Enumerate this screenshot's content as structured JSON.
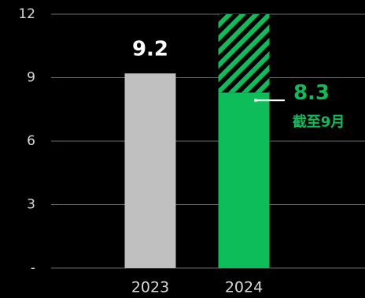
{
  "chart_data": {
    "type": "bar",
    "categories": [
      "2023",
      "2024"
    ],
    "series": [
      {
        "colors": [
          "#c0c0c0",
          "#0dbd5a"
        ],
        "values": [
          9.2,
          8.3
        ]
      },
      {
        "color": "#0dbd5a",
        "pattern": "hatch",
        "values": [
          null,
          3.7
        ]
      }
    ],
    "annotation": "截至9月",
    "ylim": [
      0,
      12
    ],
    "yticks": [
      {
        "value": 0,
        "label": "-"
      },
      3,
      6,
      9,
      12
    ],
    "grid": true
  }
}
